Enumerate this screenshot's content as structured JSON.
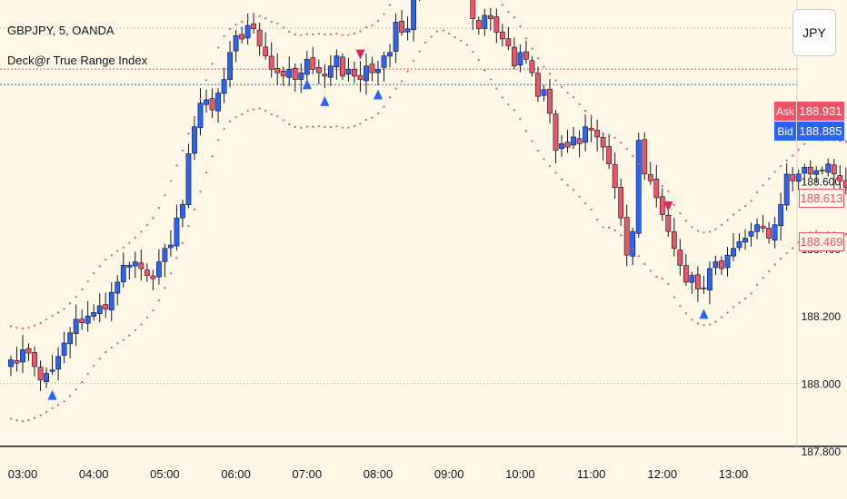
{
  "header": {
    "symbol_line": "GBPJPY, 5, OANDA",
    "indicator_name": "Deck@r True Range Index"
  },
  "currency_button": "JPY",
  "price_tags": {
    "ask_label": "Ask",
    "ask_value": "188.931",
    "bid_label": "Bid",
    "bid_value": "188.885",
    "upper_band_value": "188.613",
    "lower_band_value": "188.469"
  },
  "colors": {
    "background": "#fff8e7",
    "up_candle": "#2962ff",
    "down_candle": "#ef5366",
    "band_dots": "#ef5366",
    "buy_arrow": "#2962ff",
    "sell_arrow": "#e91e63",
    "ask_line": "#ef5366",
    "bid_line": "#2962ff"
  },
  "chart_data": {
    "type": "candlestick",
    "title": "GBPJPY, 5, OANDA",
    "indicator": "Deck@r True Range Index",
    "x_ticks": [
      "03:00",
      "04:00",
      "05:00",
      "06:00",
      "07:00",
      "08:00",
      "09:00",
      "10:00",
      "11:00",
      "12:00",
      "13:00"
    ],
    "y_ticks": [
      "187.800",
      "188.000",
      "188.200",
      "188.400",
      "188.600",
      "188.800"
    ],
    "ylim": [
      187.76,
      189.13
    ],
    "price_lines": {
      "ask": 188.931,
      "bid": 188.885
    },
    "candles_start": "02:50",
    "candle_interval_minutes": 5,
    "closes": [
      188.07,
      188.06,
      188.1,
      188.09,
      188.05,
      188.01,
      188.03,
      188.04,
      188.08,
      188.12,
      188.15,
      188.19,
      188.18,
      188.2,
      188.21,
      188.23,
      188.22,
      188.27,
      188.3,
      188.35,
      188.35,
      188.36,
      188.34,
      188.32,
      188.31,
      188.36,
      188.4,
      188.41,
      188.49,
      188.53,
      188.68,
      188.76,
      188.83,
      188.84,
      188.81,
      188.86,
      188.9,
      188.98,
      189.03,
      189.02,
      189.06,
      189.05,
      189.0,
      188.97,
      188.93,
      188.92,
      188.91,
      188.93,
      188.9,
      188.92,
      188.96,
      188.93,
      188.92,
      188.91,
      188.94,
      188.97,
      188.91,
      188.93,
      188.91,
      188.9,
      188.94,
      188.92,
      188.93,
      188.97,
      188.98,
      189.07,
      189.04,
      189.05,
      189.15,
      189.21,
      189.19,
      189.18,
      189.24,
      189.27,
      189.28,
      189.27,
      189.26,
      189.21,
      189.08,
      189.05,
      189.09,
      189.08,
      189.04,
      189.02,
      189.0,
      188.94,
      188.98,
      188.96,
      188.92,
      188.85,
      188.87,
      188.8,
      188.69,
      188.71,
      188.7,
      188.73,
      188.71,
      188.76,
      188.75,
      188.73,
      188.7,
      188.65,
      188.58,
      188.49,
      188.38,
      188.45,
      188.72,
      188.62,
      188.6,
      188.55,
      188.5,
      188.45,
      188.4,
      188.35,
      188.3,
      188.32,
      188.28,
      188.28,
      188.34,
      188.36,
      188.34,
      188.38,
      188.4,
      188.42,
      188.43,
      188.45,
      188.47,
      188.46,
      188.43,
      188.47,
      188.53,
      188.62,
      188.6,
      188.62,
      188.64,
      188.62,
      188.63,
      188.63,
      188.65,
      188.62,
      188.6,
      188.58,
      188.56
    ],
    "upper_band_last": 188.613,
    "lower_band_last": 188.469,
    "signals": [
      {
        "type": "buy",
        "time": "03:25"
      },
      {
        "type": "buy",
        "time": "07:00"
      },
      {
        "type": "buy",
        "time": "07:15"
      },
      {
        "type": "sell",
        "time": "07:45"
      },
      {
        "type": "buy",
        "time": "08:00"
      },
      {
        "type": "sell",
        "time": "09:20"
      },
      {
        "type": "sell",
        "time": "12:05"
      },
      {
        "type": "buy",
        "time": "12:35"
      }
    ]
  }
}
